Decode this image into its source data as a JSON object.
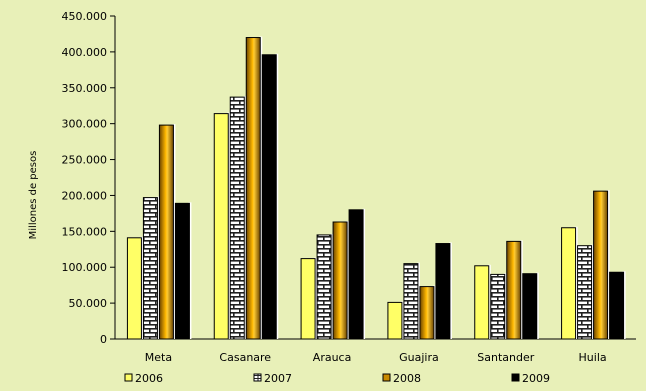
{
  "chart_data": {
    "type": "bar",
    "title": "",
    "xlabel": "",
    "ylabel": "Millones de pesos",
    "ylim": [
      0,
      450000
    ],
    "yticks": [
      0,
      50000,
      100000,
      150000,
      200000,
      250000,
      300000,
      350000,
      400000,
      450000
    ],
    "ytick_labels": [
      "0",
      "50.000",
      "100.000",
      "150.000",
      "200.000",
      "250.000",
      "300.000",
      "350.000",
      "400.000",
      "450.000"
    ],
    "categories": [
      "Meta",
      "Casanare",
      "Arauca",
      "Guajira",
      "Santander",
      "Huila"
    ],
    "grid": false,
    "legend_position": "bottom",
    "series": [
      {
        "name": "2006",
        "values": [
          141000,
          314000,
          112000,
          51000,
          102000,
          155000
        ],
        "color": "#ffff66",
        "pattern": "solid"
      },
      {
        "name": "2007",
        "values": [
          197000,
          337000,
          145000,
          105000,
          90000,
          130000
        ],
        "color": "#333333",
        "pattern": "brick"
      },
      {
        "name": "2008",
        "values": [
          298000,
          420000,
          163000,
          73000,
          136000,
          206000
        ],
        "color": "#c88a00",
        "pattern": "gradient"
      },
      {
        "name": "2009",
        "values": [
          189000,
          396000,
          180000,
          133000,
          91000,
          93000
        ],
        "color": "#000000",
        "pattern": "solid"
      }
    ]
  }
}
